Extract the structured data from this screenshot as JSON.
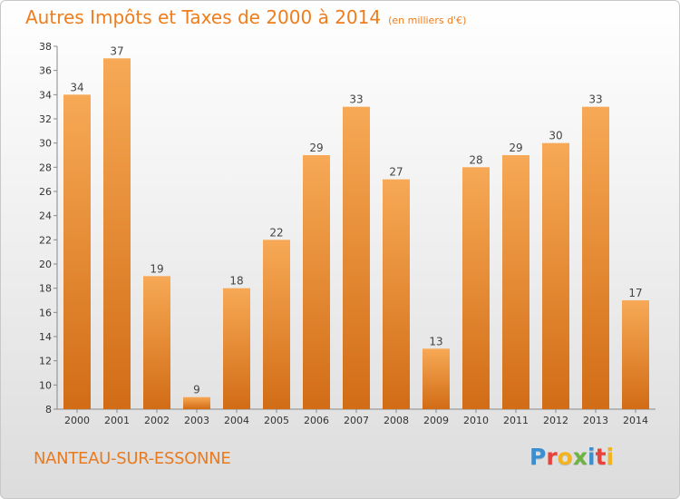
{
  "header": {
    "title": "Autres Impôts et Taxes de 2000 à 2014",
    "subtitle": "(en milliers d'€)"
  },
  "footer": {
    "commune": "NANTEAU-SUR-ESSONNE",
    "logo_text": "Proxiti",
    "logo_letters": [
      {
        "char": "P",
        "color": "#3b8fd0"
      },
      {
        "char": "r",
        "color": "#e8423a"
      },
      {
        "char": "o",
        "color": "#f3b41f"
      },
      {
        "char": "x",
        "color": "#6cb43f"
      },
      {
        "char": "i",
        "color": "#3b8fd0"
      },
      {
        "char": "t",
        "color": "#e8423a"
      },
      {
        "char": "i",
        "color": "#f3b41f"
      }
    ]
  },
  "colors": {
    "accent": "#f07d1c",
    "bar_light": "#f6a24c",
    "bar_dark": "#cf6a14",
    "label": "#444444"
  },
  "chart_data": {
    "type": "bar",
    "title": "Autres Impôts et Taxes de 2000 à 2014",
    "subtitle": "(en milliers d'€)",
    "categories": [
      "2000",
      "2001",
      "2002",
      "2003",
      "2004",
      "2005",
      "2006",
      "2007",
      "2008",
      "2009",
      "2010",
      "2011",
      "2012",
      "2013",
      "2014"
    ],
    "values": [
      34,
      37,
      19,
      9,
      18,
      22,
      29,
      33,
      27,
      13,
      28,
      29,
      30,
      33,
      17
    ],
    "ylim": [
      8,
      38
    ],
    "yticks": [
      8,
      10,
      12,
      14,
      16,
      18,
      20,
      22,
      24,
      26,
      28,
      30,
      32,
      34,
      36,
      38
    ],
    "xlabel": "",
    "ylabel": "",
    "grid": false,
    "data_labels": true
  }
}
